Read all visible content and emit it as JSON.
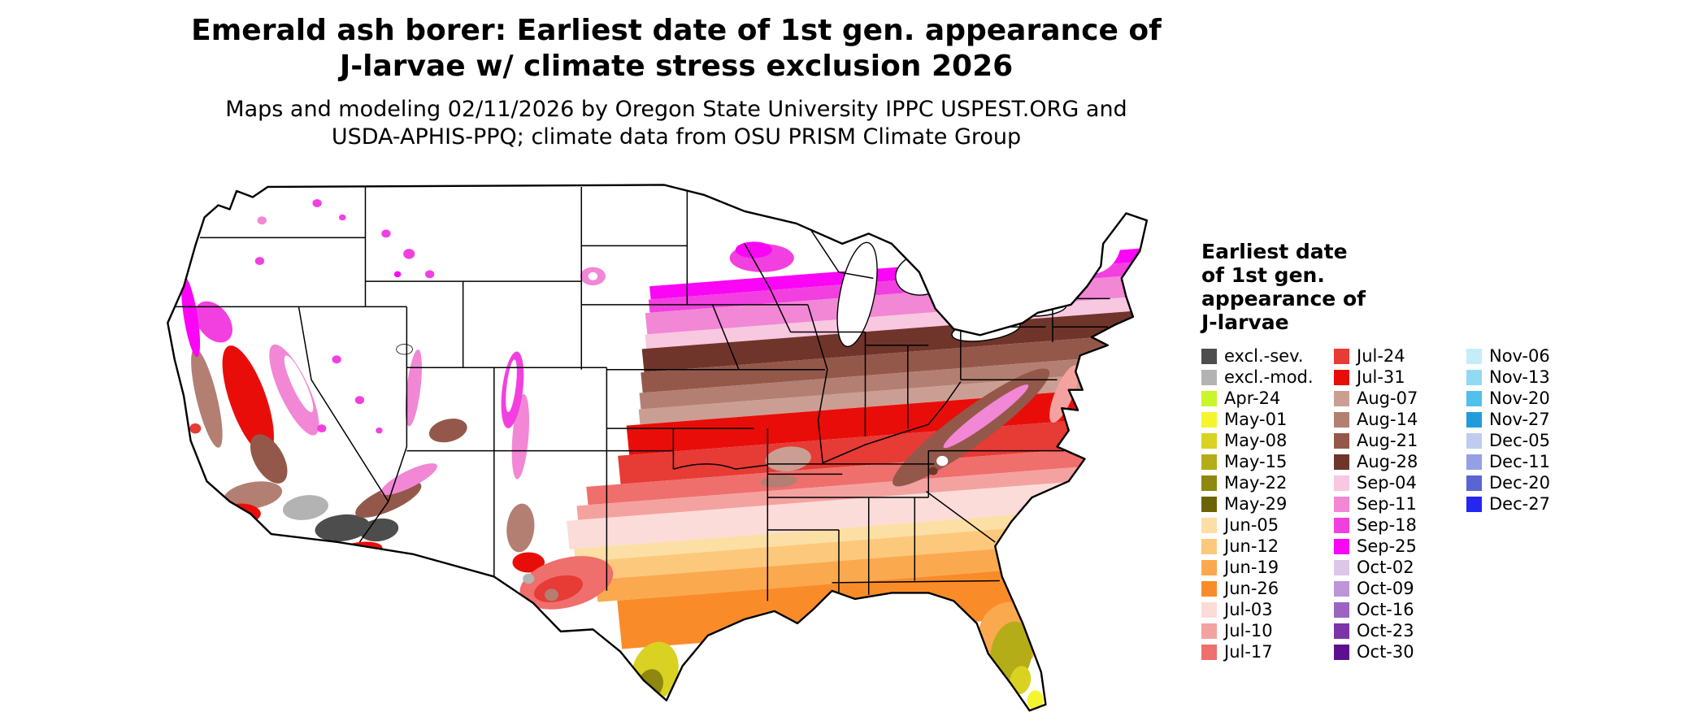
{
  "header": {
    "title_line1": "Emerald ash borer: Earliest date of 1st gen. appearance of",
    "title_line2": "J-larvae w/ climate stress exclusion 2026",
    "subtitle_line1": "Maps and modeling 02/11/2026 by Oregon State University IPPC USPEST.ORG and",
    "subtitle_line2": "USDA-APHIS-PPQ; climate data from OSU PRISM Climate Group"
  },
  "legend": {
    "title_lines": [
      "Earliest date",
      "of 1st gen.",
      "appearance of",
      "J-larvae"
    ],
    "columns": [
      {
        "entries": [
          {
            "key": "excl_sev",
            "label": "excl.-sev."
          },
          {
            "key": "excl_mod",
            "label": "excl.-mod."
          },
          {
            "key": "apr24",
            "label": "Apr-24"
          },
          {
            "key": "may01",
            "label": "May-01"
          },
          {
            "key": "may08",
            "label": "May-08"
          },
          {
            "key": "may15",
            "label": "May-15"
          },
          {
            "key": "may22",
            "label": "May-22"
          },
          {
            "key": "may29",
            "label": "May-29"
          },
          {
            "key": "jun05",
            "label": "Jun-05"
          },
          {
            "key": "jun12",
            "label": "Jun-12"
          },
          {
            "key": "jun19",
            "label": "Jun-19"
          },
          {
            "key": "jun26",
            "label": "Jun-26"
          },
          {
            "key": "jul03",
            "label": "Jul-03"
          },
          {
            "key": "jul10",
            "label": "Jul-10"
          },
          {
            "key": "jul17",
            "label": "Jul-17"
          }
        ]
      },
      {
        "entries": [
          {
            "key": "jul24",
            "label": "Jul-24"
          },
          {
            "key": "jul31",
            "label": "Jul-31"
          },
          {
            "key": "aug07",
            "label": "Aug-07"
          },
          {
            "key": "aug14",
            "label": "Aug-14"
          },
          {
            "key": "aug21",
            "label": "Aug-21"
          },
          {
            "key": "aug28",
            "label": "Aug-28"
          },
          {
            "key": "sep04",
            "label": "Sep-04"
          },
          {
            "key": "sep11",
            "label": "Sep-11"
          },
          {
            "key": "sep18",
            "label": "Sep-18"
          },
          {
            "key": "sep25",
            "label": "Sep-25"
          },
          {
            "key": "oct02",
            "label": "Oct-02"
          },
          {
            "key": "oct09",
            "label": "Oct-09"
          },
          {
            "key": "oct16",
            "label": "Oct-16"
          },
          {
            "key": "oct23",
            "label": "Oct-23"
          },
          {
            "key": "oct30",
            "label": "Oct-30"
          }
        ]
      },
      {
        "entries": [
          {
            "key": "nov06",
            "label": "Nov-06"
          },
          {
            "key": "nov13",
            "label": "Nov-13"
          },
          {
            "key": "nov20",
            "label": "Nov-20"
          },
          {
            "key": "nov27",
            "label": "Nov-27"
          },
          {
            "key": "dec05",
            "label": "Dec-05"
          },
          {
            "key": "dec11",
            "label": "Dec-11"
          },
          {
            "key": "dec20",
            "label": "Dec-20"
          },
          {
            "key": "dec27",
            "label": "Dec-27"
          }
        ]
      }
    ]
  },
  "palette": {
    "excl_sev": "#4d4d4d",
    "excl_mod": "#b3b3b3",
    "apr24": "#cbf52b",
    "may01": "#f5f52e",
    "may08": "#d9d222",
    "may15": "#b5ad17",
    "may22": "#8f870e",
    "may29": "#6b6306",
    "jun05": "#fcdfa4",
    "jun12": "#fcc97c",
    "jun19": "#fba94f",
    "jun26": "#f98c29",
    "jul03": "#fcdcd8",
    "jul10": "#f4a2a0",
    "jul17": "#ef6f6c",
    "jul24": "#e73b35",
    "jul31": "#e90d09",
    "aug07": "#cb9e94",
    "aug14": "#b37f72",
    "aug21": "#94584a",
    "aug28": "#6f352a",
    "sep04": "#f8c7e0",
    "sep11": "#f187d5",
    "sep18": "#f240e0",
    "sep25": "#fa05f6",
    "oct02": "#dcc6ea",
    "oct09": "#bd95d8",
    "oct16": "#9c63c3",
    "oct23": "#7c34a9",
    "oct30": "#5d108d",
    "nov06": "#c5edf9",
    "nov13": "#92daf3",
    "nov20": "#51c0ea",
    "nov27": "#219cda",
    "dec05": "#c0cbf0",
    "dec11": "#93a1e4",
    "dec20": "#5a64d2",
    "dec27": "#2426f2"
  }
}
